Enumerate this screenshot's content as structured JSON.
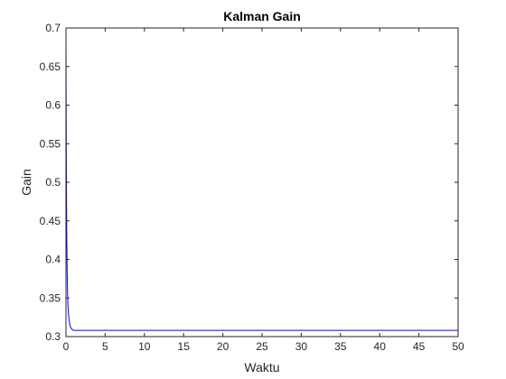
{
  "chart_data": {
    "type": "line",
    "title": "Kalman Gain",
    "xlabel": "Waktu",
    "ylabel": "Gain",
    "xlim": [
      0,
      50
    ],
    "ylim": [
      0.3,
      0.7
    ],
    "xticks": [
      0,
      5,
      10,
      15,
      20,
      25,
      30,
      35,
      40,
      45,
      50
    ],
    "yticks": [
      0.3,
      0.35,
      0.4,
      0.45,
      0.5,
      0.55,
      0.6,
      0.65,
      0.7
    ],
    "xtick_labels": [
      "0",
      "5",
      "10",
      "15",
      "20",
      "25",
      "30",
      "35",
      "40",
      "45",
      "50"
    ],
    "ytick_labels": [
      "0.3",
      "0.35",
      "0.4",
      "0.45",
      "0.5",
      "0.55",
      "0.6",
      "0.65",
      "0.7"
    ],
    "grid": false,
    "series": [
      {
        "color": "#0000ff",
        "x": [
          0,
          0.05,
          0.1,
          0.15,
          0.2,
          0.25,
          0.3,
          0.4,
          0.5,
          0.6,
          0.8,
          1.0,
          1.5,
          2,
          5,
          10,
          20,
          30,
          40,
          50
        ],
        "y": [
          0.685,
          0.52,
          0.43,
          0.385,
          0.358,
          0.342,
          0.332,
          0.321,
          0.315,
          0.312,
          0.309,
          0.308,
          0.308,
          0.308,
          0.308,
          0.308,
          0.308,
          0.308,
          0.308,
          0.308
        ]
      }
    ]
  }
}
